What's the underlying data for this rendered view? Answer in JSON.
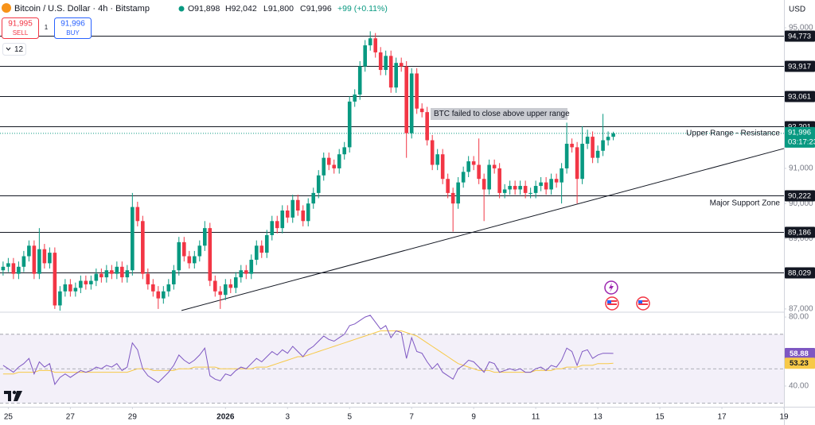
{
  "header": {
    "symbol": "Bitcoin / U.S. Dollar · 4h · Bitstamp",
    "open": "O91,898",
    "high": "H92,042",
    "low": "L91,800",
    "close": "C91,996",
    "change": "+99 (+0.11%)",
    "sell_price": "91,995",
    "sell": "SELL",
    "spread": "1",
    "buy_price": "91,996",
    "buy": "BUY",
    "indicators": "12",
    "currency": "USD"
  },
  "chart_data": {
    "type": "candlestick",
    "up_color": "#089981",
    "down_color": "#f23645",
    "candles": [
      [
        88100,
        88350,
        87950,
        88200
      ],
      [
        88200,
        88450,
        88050,
        88300
      ],
      [
        88300,
        88450,
        87850,
        88000
      ],
      [
        88000,
        88350,
        87850,
        88200
      ],
      [
        88200,
        88650,
        88050,
        88500
      ],
      [
        88500,
        88950,
        88350,
        88800
      ],
      [
        88800,
        88950,
        87850,
        88000
      ],
      [
        88000,
        89300,
        87850,
        88700
      ],
      [
        88700,
        88850,
        88150,
        88300
      ],
      [
        88300,
        88750,
        88150,
        88600
      ],
      [
        88600,
        88750,
        87000,
        87100
      ],
      [
        87100,
        87650,
        86950,
        87500
      ],
      [
        87500,
        87850,
        87350,
        87700
      ],
      [
        87700,
        87850,
        87350,
        87500
      ],
      [
        87500,
        87750,
        87350,
        87600
      ],
      [
        87600,
        87950,
        87450,
        87800
      ],
      [
        87800,
        87950,
        87550,
        87700
      ],
      [
        87700,
        87950,
        87550,
        87800
      ],
      [
        87800,
        88150,
        87650,
        88000
      ],
      [
        88000,
        88150,
        87750,
        87900
      ],
      [
        87900,
        88250,
        87750,
        88100
      ],
      [
        88100,
        88250,
        87850,
        88000
      ],
      [
        88000,
        88350,
        87850,
        88200
      ],
      [
        88200,
        88350,
        87750,
        87900
      ],
      [
        87900,
        88250,
        87750,
        88100
      ],
      [
        88100,
        90300,
        87950,
        89900
      ],
      [
        89900,
        90050,
        89350,
        89500
      ],
      [
        89500,
        89650,
        87850,
        88000
      ],
      [
        88000,
        88150,
        87550,
        87700
      ],
      [
        87700,
        87850,
        87350,
        87500
      ],
      [
        87500,
        87650,
        87000,
        87300
      ],
      [
        87300,
        87650,
        87150,
        87500
      ],
      [
        87500,
        87850,
        87350,
        87700
      ],
      [
        87700,
        88250,
        87550,
        88100
      ],
      [
        88100,
        89050,
        87950,
        88900
      ],
      [
        88900,
        89050,
        88350,
        88500
      ],
      [
        88500,
        88650,
        88150,
        88300
      ],
      [
        88300,
        88650,
        88150,
        88500
      ],
      [
        88500,
        88950,
        88350,
        88800
      ],
      [
        88800,
        89500,
        88650,
        89300
      ],
      [
        89300,
        89450,
        87650,
        87800
      ],
      [
        87800,
        87950,
        87350,
        87500
      ],
      [
        87500,
        87650,
        87000,
        87400
      ],
      [
        87400,
        87850,
        87250,
        87700
      ],
      [
        87700,
        87850,
        87450,
        87600
      ],
      [
        87600,
        88050,
        87450,
        87900
      ],
      [
        87900,
        88250,
        87750,
        88100
      ],
      [
        88100,
        88250,
        87850,
        88000
      ],
      [
        88000,
        88550,
        87850,
        88400
      ],
      [
        88400,
        88950,
        88250,
        88800
      ],
      [
        88800,
        88950,
        88450,
        88600
      ],
      [
        88600,
        89250,
        88450,
        89100
      ],
      [
        89100,
        89650,
        88950,
        89500
      ],
      [
        89500,
        89650,
        89150,
        89300
      ],
      [
        89300,
        89950,
        89150,
        89800
      ],
      [
        89800,
        89950,
        89450,
        89600
      ],
      [
        89600,
        90250,
        89450,
        90100
      ],
      [
        90100,
        90250,
        89650,
        89800
      ],
      [
        89800,
        89950,
        89350,
        89500
      ],
      [
        89500,
        90150,
        89350,
        90000
      ],
      [
        90000,
        90450,
        89850,
        90300
      ],
      [
        90300,
        90950,
        90150,
        90800
      ],
      [
        90800,
        91450,
        90650,
        91300
      ],
      [
        91300,
        91450,
        90950,
        91100
      ],
      [
        91100,
        91250,
        90850,
        91000
      ],
      [
        91000,
        91550,
        90850,
        91400
      ],
      [
        91400,
        91750,
        91250,
        91600
      ],
      [
        91600,
        93050,
        91450,
        92900
      ],
      [
        92900,
        93250,
        92750,
        93100
      ],
      [
        93100,
        94050,
        92950,
        93900
      ],
      [
        93900,
        94650,
        93750,
        94500
      ],
      [
        94500,
        94900,
        94350,
        94700
      ],
      [
        94700,
        94850,
        94150,
        94300
      ],
      [
        94300,
        94450,
        93650,
        93800
      ],
      [
        93800,
        94350,
        93650,
        94200
      ],
      [
        94200,
        94350,
        93150,
        93300
      ],
      [
        93300,
        94150,
        93150,
        94000
      ],
      [
        94000,
        94150,
        93750,
        93900
      ],
      [
        93900,
        94050,
        91300,
        92000
      ],
      [
        92000,
        93850,
        91850,
        93700
      ],
      [
        93700,
        93850,
        92550,
        92700
      ],
      [
        92700,
        92850,
        92450,
        92600
      ],
      [
        92600,
        92750,
        91650,
        91800
      ],
      [
        91800,
        91950,
        90950,
        91100
      ],
      [
        91100,
        91550,
        90950,
        91400
      ],
      [
        91400,
        91550,
        90550,
        90700
      ],
      [
        90700,
        90850,
        90150,
        90300
      ],
      [
        90300,
        90450,
        89200,
        90000
      ],
      [
        90000,
        90750,
        89850,
        90600
      ],
      [
        90600,
        91050,
        90450,
        90900
      ],
      [
        90900,
        91350,
        90750,
        91200
      ],
      [
        91200,
        91350,
        90950,
        91100
      ],
      [
        91100,
        91850,
        90550,
        90700
      ],
      [
        90700,
        90850,
        89500,
        90400
      ],
      [
        90400,
        91250,
        90250,
        91100
      ],
      [
        91100,
        91250,
        90850,
        91000
      ],
      [
        91000,
        91150,
        90150,
        90300
      ],
      [
        90300,
        90550,
        90150,
        90400
      ],
      [
        90400,
        90650,
        90250,
        90500
      ],
      [
        90500,
        90650,
        90250,
        90400
      ],
      [
        90400,
        90650,
        90250,
        90500
      ],
      [
        90500,
        90650,
        90150,
        90300
      ],
      [
        90300,
        90450,
        90150,
        90300
      ],
      [
        90300,
        90650,
        90150,
        90500
      ],
      [
        90500,
        90750,
        90350,
        90600
      ],
      [
        90600,
        90750,
        90250,
        90400
      ],
      [
        90400,
        90850,
        90250,
        90700
      ],
      [
        90700,
        90850,
        90450,
        90600
      ],
      [
        90600,
        91150,
        90000,
        91000
      ],
      [
        91000,
        92300,
        90850,
        91700
      ],
      [
        91700,
        91850,
        91450,
        91600
      ],
      [
        91600,
        91750,
        90000,
        90700
      ],
      [
        90700,
        92200,
        90550,
        91700
      ],
      [
        91700,
        92100,
        91550,
        91900
      ],
      [
        91900,
        92050,
        91150,
        91300
      ],
      [
        91300,
        91650,
        91150,
        91500
      ],
      [
        91500,
        92550,
        91350,
        91800
      ],
      [
        91800,
        92050,
        91650,
        91898
      ],
      [
        91898,
        92042,
        91800,
        91996
      ]
    ],
    "xlim": [
      -0.6,
      151
    ],
    "xticks": [
      {
        "value": 1,
        "label": "25"
      },
      {
        "value": 13,
        "label": "27"
      },
      {
        "value": 25,
        "label": "29"
      },
      {
        "value": 43,
        "label": "2026"
      },
      {
        "value": 55,
        "label": "3"
      },
      {
        "value": 67,
        "label": "5"
      },
      {
        "value": 79,
        "label": "7"
      },
      {
        "value": 91,
        "label": "9"
      },
      {
        "value": 103,
        "label": "11"
      },
      {
        "value": 115,
        "label": "13"
      },
      {
        "value": 127,
        "label": "15"
      },
      {
        "value": 139,
        "label": "17"
      },
      {
        "value": 151,
        "label": "19"
      }
    ],
    "ylim": [
      86930,
      95790
    ],
    "yticks": [
      {
        "value": 95000,
        "label": "95,000"
      },
      {
        "value": 91000,
        "label": "91,000"
      },
      {
        "value": 90000,
        "label": "90,000"
      },
      {
        "value": 89000,
        "label": "89,000"
      },
      {
        "value": 87000,
        "label": "87,000"
      }
    ],
    "levels": [
      {
        "value": 94773,
        "label": "94,773"
      },
      {
        "value": 93917,
        "label": "93,917"
      },
      {
        "value": 93061,
        "label": "93,061"
      },
      {
        "value": 92201,
        "label": "92,201"
      },
      {
        "value": 90222,
        "label": "90,222"
      },
      {
        "value": 89186,
        "label": "89,186"
      },
      {
        "value": 88029,
        "label": "88,029"
      }
    ],
    "current": {
      "value": 91996,
      "label": "91,996",
      "countdown": "03:17:23"
    },
    "trendline": {
      "x": [
        34.5,
        151
      ],
      "y": [
        86955,
        91565
      ]
    },
    "annotations": {
      "note": "BTC failed to close above upper range",
      "resistance": "Upper Range - Resistance",
      "support": "Major Support Zone"
    },
    "rsi": {
      "ylim": [
        28,
        82.8
      ],
      "yticks": [
        {
          "value": 80,
          "label": "80.00"
        },
        {
          "value": 40,
          "label": "40.00"
        }
      ],
      "levels": [
        70,
        50,
        30
      ],
      "line": {
        "color": "#7e57c2",
        "values": [
          52,
          50,
          48,
          51,
          53,
          56,
          47,
          54,
          51,
          53,
          41,
          45,
          47,
          45,
          47,
          49,
          48,
          49,
          51,
          50,
          52,
          51,
          53,
          49,
          51,
          65,
          61,
          50,
          46,
          44,
          42,
          45,
          48,
          52,
          58,
          55,
          53,
          55,
          58,
          62,
          46,
          44,
          43,
          47,
          46,
          49,
          51,
          50,
          53,
          56,
          54,
          57,
          60,
          58,
          61,
          59,
          63,
          60,
          57,
          61,
          63,
          66,
          69,
          67,
          66,
          68,
          70,
          75,
          76,
          78,
          80,
          81,
          77,
          73,
          75,
          68,
          72,
          71,
          56,
          68,
          60,
          59,
          54,
          50,
          53,
          48,
          46,
          44,
          50,
          52,
          55,
          54,
          51,
          48,
          54,
          53,
          48,
          49,
          50,
          49,
          50,
          48,
          48,
          50,
          51,
          49,
          52,
          51,
          55,
          62,
          60,
          52,
          60,
          61,
          56,
          58,
          59,
          59,
          58.88
        ]
      },
      "ma": {
        "color": "#f7c948",
        "values": [
          47,
          47,
          47,
          48,
          48,
          48,
          48,
          49,
          49,
          49,
          48,
          48,
          48,
          48,
          48,
          48,
          48,
          48,
          48,
          48,
          48,
          48,
          48,
          48,
          48,
          49,
          50,
          50,
          50,
          49,
          49,
          49,
          49,
          49,
          50,
          50,
          50,
          51,
          51,
          51,
          51,
          51,
          50,
          50,
          50,
          50,
          50,
          50,
          50,
          51,
          51,
          51,
          52,
          53,
          54,
          55,
          56,
          57,
          57,
          58,
          59,
          60,
          61,
          62,
          63,
          64,
          65,
          66,
          67,
          68,
          69,
          70,
          71,
          72,
          72,
          72,
          72,
          72,
          71,
          70,
          69,
          67,
          65,
          63,
          61,
          59,
          57,
          55,
          53,
          52,
          51,
          50,
          49,
          49,
          49,
          48,
          48,
          48,
          48,
          48,
          48,
          48,
          48,
          49,
          49,
          49,
          49,
          50,
          50,
          51,
          51,
          51,
          52,
          52,
          52,
          53,
          53,
          53,
          53.23
        ]
      }
    }
  }
}
